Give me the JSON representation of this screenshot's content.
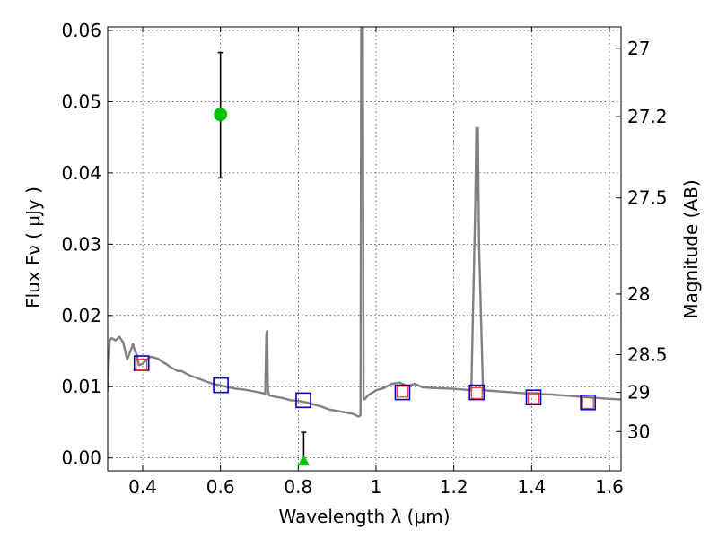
{
  "chart_data": {
    "type": "scatter",
    "xlabel": "Wavelength  λ (μm)",
    "ylabel": "Flux  Fν  ( μJy )",
    "ylabel_right": "Magnitude (AB)",
    "xlim": [
      0.31,
      1.63
    ],
    "ylim": [
      -0.0018,
      0.0605
    ],
    "grid": true,
    "x_ticks": [
      0.4,
      0.6,
      0.8,
      1.0,
      1.2,
      1.4,
      1.6
    ],
    "x_tick_labels": [
      "0.4",
      "0.6",
      "0.8",
      "1",
      "1.2",
      "1.4",
      "1.6"
    ],
    "y_ticks": [
      0.0,
      0.01,
      0.02,
      0.03,
      0.04,
      0.05,
      0.06
    ],
    "y_tick_labels": [
      "0.00",
      "0.01",
      "0.02",
      "0.03",
      "0.04",
      "0.05",
      "0.06"
    ],
    "right_ticks": [
      {
        "flux": 0.0575,
        "label": "27"
      },
      {
        "flux": 0.0479,
        "label": "27.2"
      },
      {
        "flux": 0.0365,
        "label": "27.5"
      },
      {
        "flux": 0.023,
        "label": "28"
      },
      {
        "flux": 0.0145,
        "label": "28.5"
      },
      {
        "flux": 0.0092,
        "label": "29"
      },
      {
        "flux": 0.0037,
        "label": "30"
      }
    ],
    "series": [
      {
        "name": "model spectrum",
        "kind": "line",
        "color": "#808080",
        "x": [
          0.31,
          0.315,
          0.32,
          0.33,
          0.34,
          0.35,
          0.36,
          0.37,
          0.375,
          0.38,
          0.385,
          0.39,
          0.4,
          0.41,
          0.42,
          0.43,
          0.44,
          0.45,
          0.46,
          0.47,
          0.48,
          0.49,
          0.5,
          0.52,
          0.54,
          0.56,
          0.58,
          0.6,
          0.62,
          0.64,
          0.66,
          0.68,
          0.7,
          0.715,
          0.718,
          0.72,
          0.722,
          0.725,
          0.74,
          0.76,
          0.78,
          0.8,
          0.82,
          0.84,
          0.86,
          0.88,
          0.9,
          0.92,
          0.94,
          0.955,
          0.96,
          0.962,
          0.964,
          0.966,
          0.968,
          0.97,
          0.98,
          1.0,
          1.02,
          1.04,
          1.06,
          1.08,
          1.1,
          1.12,
          1.15,
          1.2,
          1.245,
          1.255,
          1.258,
          1.26,
          1.262,
          1.265,
          1.275,
          1.3,
          1.35,
          1.4,
          1.45,
          1.5,
          1.55,
          1.6,
          1.63
        ],
        "y": [
          0.0093,
          0.0165,
          0.0168,
          0.0165,
          0.017,
          0.0162,
          0.0138,
          0.0152,
          0.016,
          0.015,
          0.0145,
          0.013,
          0.0132,
          0.0138,
          0.0142,
          0.0141,
          0.0139,
          0.0135,
          0.0132,
          0.0128,
          0.0125,
          0.0122,
          0.0122,
          0.0116,
          0.0112,
          0.0108,
          0.0104,
          0.0102,
          0.0099,
          0.0097,
          0.0096,
          0.0094,
          0.0092,
          0.009,
          0.0175,
          0.0178,
          0.0095,
          0.0088,
          0.0086,
          0.0084,
          0.0081,
          0.008,
          0.0078,
          0.0075,
          0.0072,
          0.0068,
          0.0066,
          0.0064,
          0.0062,
          0.0058,
          0.006,
          0.0605,
          0.0605,
          0.0605,
          0.0085,
          0.0082,
          0.0088,
          0.0095,
          0.0098,
          0.0104,
          0.0106,
          0.0101,
          0.0104,
          0.0099,
          0.0098,
          0.0097,
          0.0095,
          0.035,
          0.0463,
          0.0463,
          0.0463,
          0.03,
          0.0095,
          0.0094,
          0.0092,
          0.009,
          0.0089,
          0.0087,
          0.0085,
          0.0083,
          0.0082
        ]
      },
      {
        "name": "observed (blue squares)",
        "kind": "markers",
        "marker": "square",
        "color": "#0000cc",
        "x": [
          0.397,
          0.601,
          0.813,
          1.068,
          1.259,
          1.405,
          1.545
        ],
        "y": [
          0.0133,
          0.0102,
          0.0081,
          0.0092,
          0.0092,
          0.0085,
          0.0078
        ]
      },
      {
        "name": "model (red squares)",
        "kind": "markers",
        "marker": "square",
        "color": "#ff3333",
        "x": [
          0.397,
          1.068,
          1.259,
          1.405,
          1.545
        ],
        "y": [
          0.0131,
          0.0093,
          0.0091,
          0.0084,
          0.0077
        ]
      },
      {
        "name": "detection",
        "kind": "markers",
        "marker": "circle",
        "color": "#00c000",
        "x": [
          0.6
        ],
        "y": [
          0.0482
        ],
        "yerr_low": [
          0.0393
        ],
        "yerr_high": [
          0.0569
        ]
      },
      {
        "name": "upper limit",
        "kind": "markers",
        "marker": "triangle",
        "color": "#00c000",
        "x": [
          0.814
        ],
        "y": [
          -0.0003
        ],
        "yerr_low": [
          -0.0003
        ],
        "yerr_high": [
          0.0036
        ]
      }
    ]
  }
}
